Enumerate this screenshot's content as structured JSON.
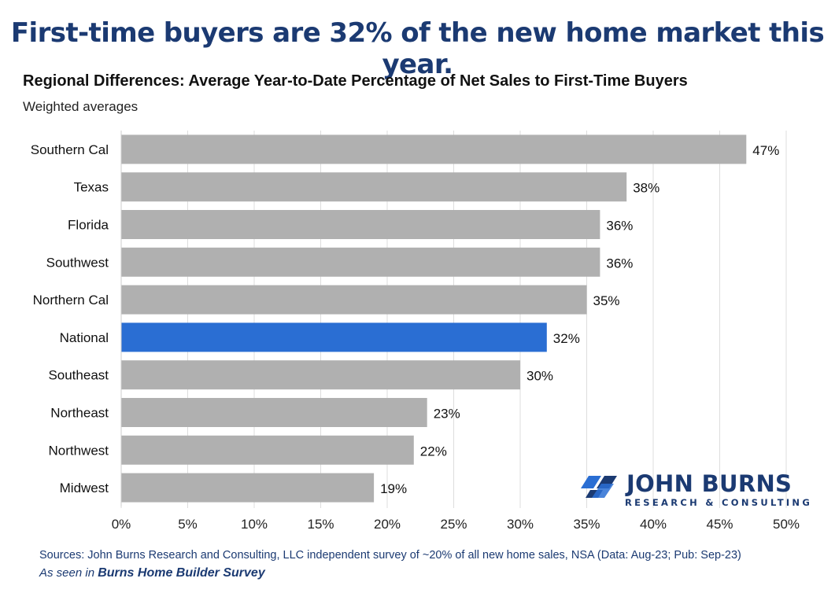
{
  "headline": "First-time buyers are 32% of the new home market this year.",
  "chart_data": {
    "type": "bar",
    "orientation": "horizontal",
    "title": "Regional Differences: Average Year-to-Date Percentage of Net Sales to First-Time Buyers",
    "subtitle": "Weighted averages",
    "categories": [
      "Southern Cal",
      "Texas",
      "Florida",
      "Southwest",
      "Northern Cal",
      "National",
      "Southeast",
      "Northeast",
      "Northwest",
      "Midwest"
    ],
    "values": [
      47,
      38,
      36,
      36,
      35,
      32,
      30,
      23,
      22,
      19
    ],
    "value_labels": [
      "47%",
      "38%",
      "36%",
      "36%",
      "35%",
      "32%",
      "30%",
      "23%",
      "22%",
      "19%"
    ],
    "highlight_category": "National",
    "xlim": [
      0,
      50
    ],
    "x_ticks": [
      "0%",
      "5%",
      "10%",
      "15%",
      "20%",
      "25%",
      "30%",
      "35%",
      "40%",
      "45%",
      "50%"
    ],
    "grid": true,
    "colors": {
      "bar": "#b0b0b0",
      "highlight": "#2a6ed3",
      "grid": "#dddddd"
    }
  },
  "logo": {
    "name": "JOHN BURNS",
    "tagline": "RESEARCH & CONSULTING"
  },
  "footer": {
    "source": "Sources: John Burns Research and Consulting, LLC independent survey of ~20% of all new home sales, NSA (Data: Aug-23; Pub: Sep-23)",
    "seen_prefix": "As seen in",
    "seen_publication": "Burns Home Builder Survey"
  }
}
